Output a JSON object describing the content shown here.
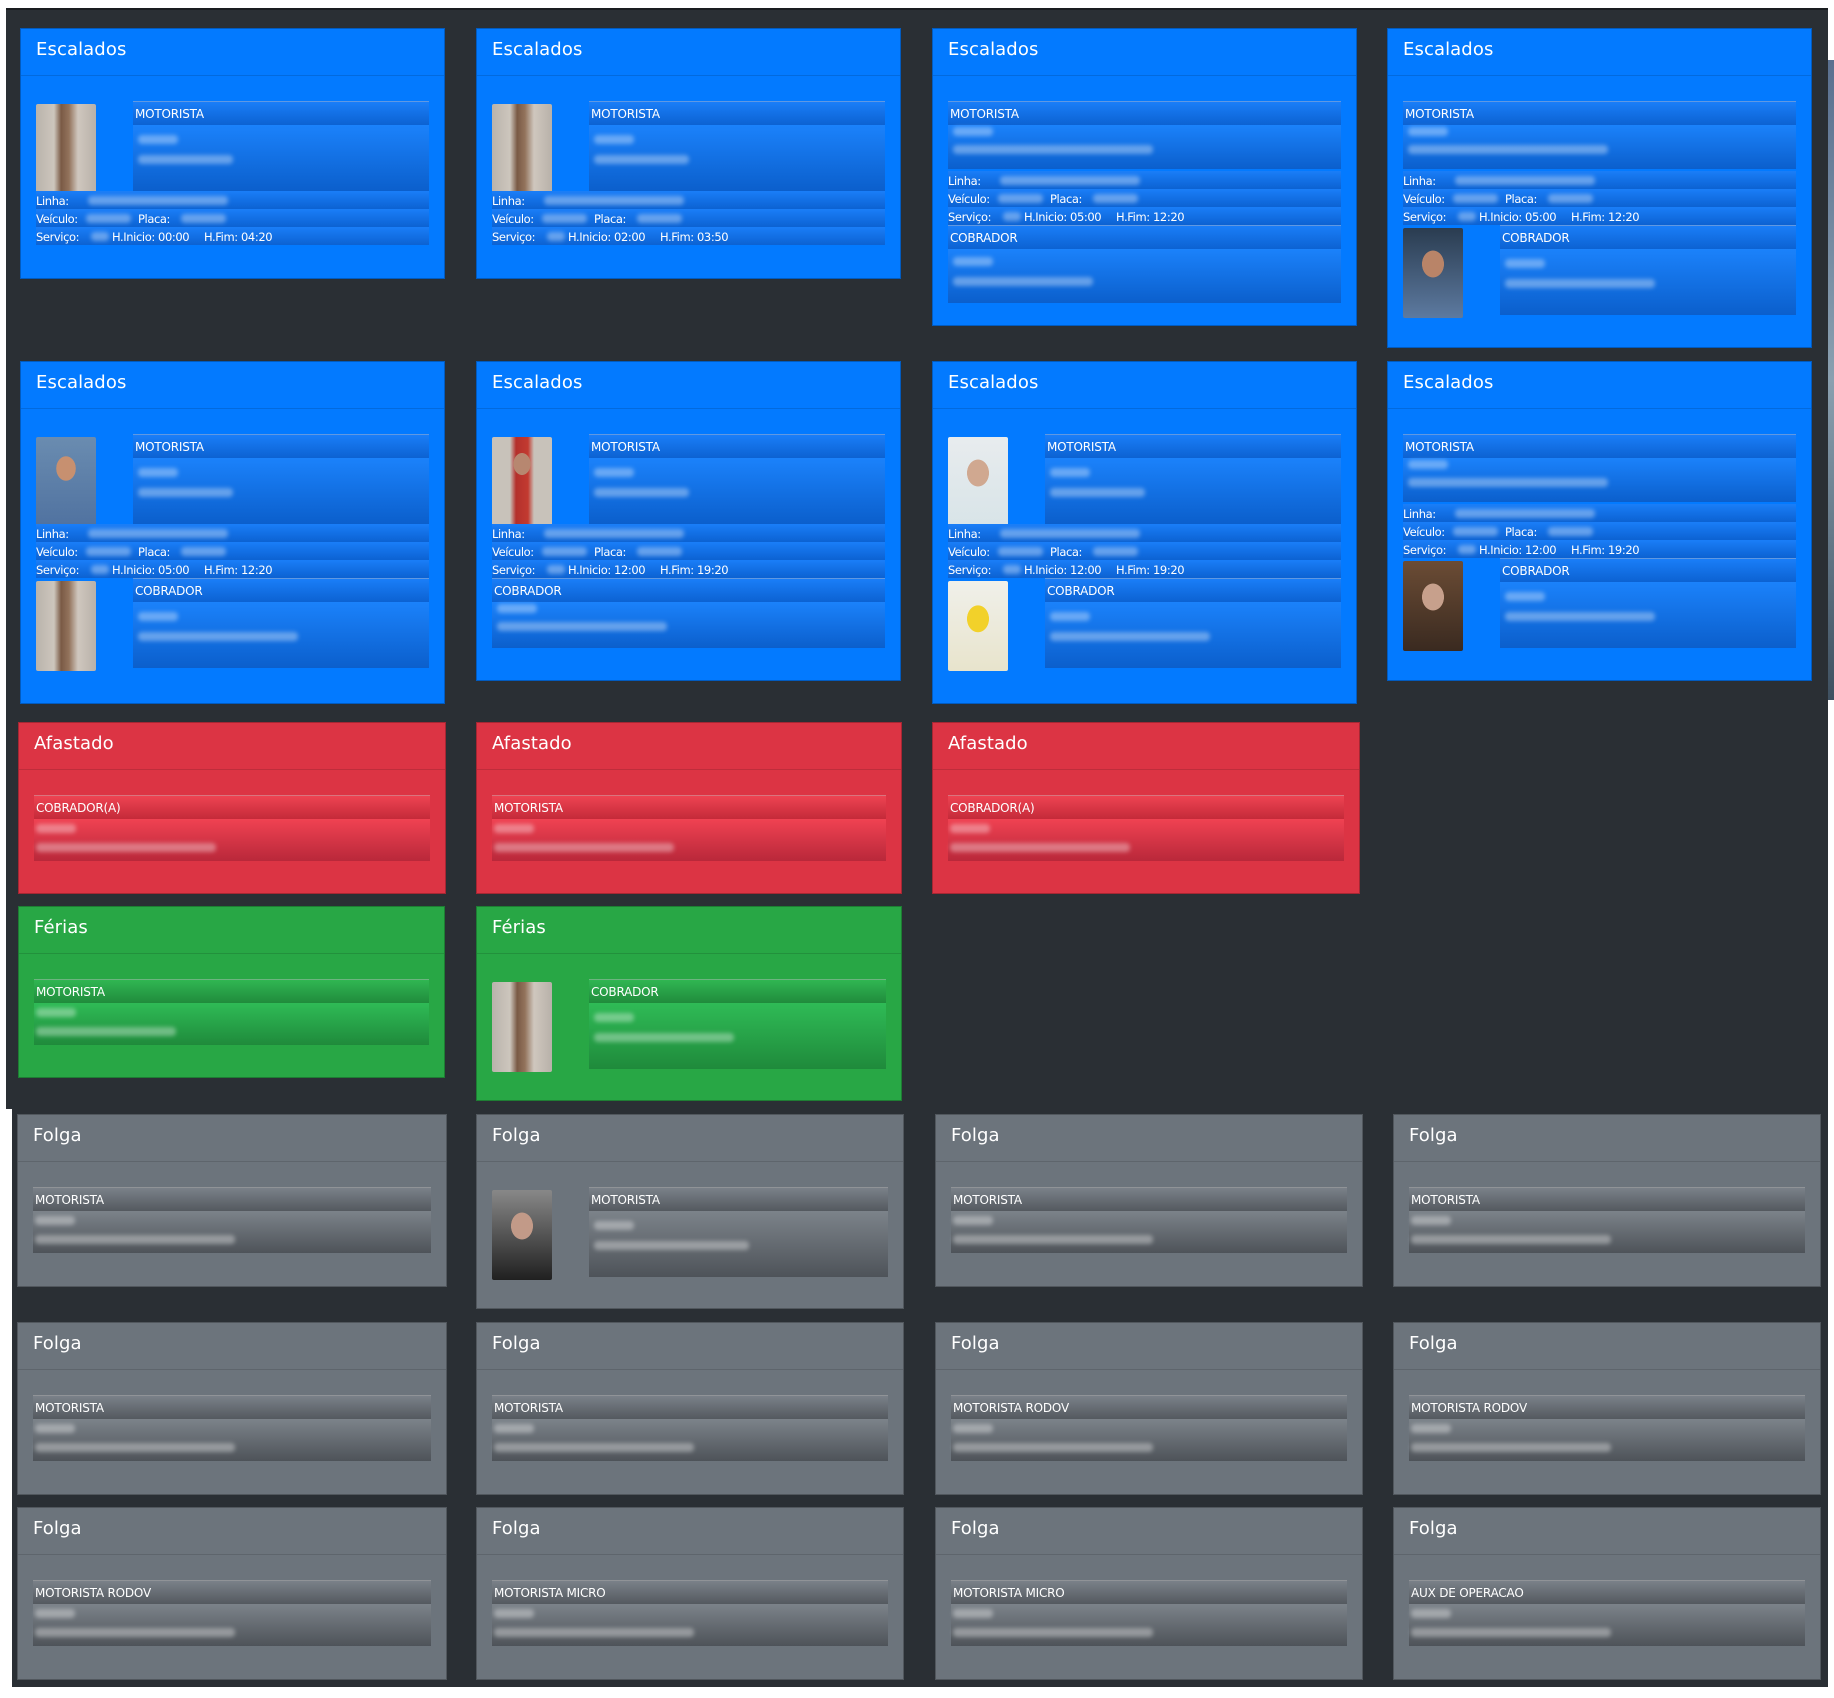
{
  "labels": {
    "motorista": "MOTORISTA",
    "cobrador": "COBRADOR",
    "cobrador_a": "COBRADOR(A)",
    "motorista_rodov": "MOTORISTA RODOV",
    "motorista_micro": "MOTORISTA MICRO",
    "aux_operacao": "AUX DE OPERACAO",
    "linha": "Linha:",
    "veiculo": "Veículo:",
    "placa": "Placa:",
    "servico": "Serviço:"
  },
  "statuses": {
    "escalados": "Escalados",
    "afastado": "Afastado",
    "ferias": "Férias",
    "folga": "Folga"
  },
  "escalados_cards": [
    {
      "status": "Escalados",
      "role": "MOTORISTA",
      "inicio": "H.Inicio: 00:00",
      "fim": "H.Fim: 04:20"
    },
    {
      "status": "Escalados",
      "role": "MOTORISTA",
      "inicio": "H.Inicio: 02:00",
      "fim": "H.Fim: 03:50"
    },
    {
      "status": "Escalados",
      "role": "MOTORISTA",
      "inicio": "H.Inicio: 05:00",
      "fim": "H.Fim: 12:20",
      "second_role": "COBRADOR"
    },
    {
      "status": "Escalados",
      "role": "MOTORISTA",
      "inicio": "H.Inicio: 05:00",
      "fim": "H.Fim: 12:20",
      "second_role": "COBRADOR"
    },
    {
      "status": "Escalados",
      "role": "MOTORISTA",
      "inicio": "H.Inicio: 05:00",
      "fim": "H.Fim: 12:20",
      "second_role": "COBRADOR"
    },
    {
      "status": "Escalados",
      "role": "MOTORISTA",
      "inicio": "H.Inicio: 12:00",
      "fim": "H.Fim: 19:20",
      "second_role": "COBRADOR"
    },
    {
      "status": "Escalados",
      "role": "MOTORISTA",
      "inicio": "H.Inicio: 12:00",
      "fim": "H.Fim: 19:20",
      "second_role": "COBRADOR"
    },
    {
      "status": "Escalados",
      "role": "MOTORISTA",
      "inicio": "H.Inicio: 12:00",
      "fim": "H.Fim: 19:20",
      "second_role": "COBRADOR"
    }
  ],
  "afastado_cards": [
    {
      "status": "Afastado",
      "role": "COBRADOR(A)"
    },
    {
      "status": "Afastado",
      "role": "MOTORISTA"
    },
    {
      "status": "Afastado",
      "role": "COBRADOR(A)"
    }
  ],
  "ferias_cards": [
    {
      "status": "Férias",
      "role": "MOTORISTA"
    },
    {
      "status": "Férias",
      "role": "COBRADOR"
    }
  ],
  "folga_cards": [
    {
      "status": "Folga",
      "role": "MOTORISTA"
    },
    {
      "status": "Folga",
      "role": "MOTORISTA"
    },
    {
      "status": "Folga",
      "role": "MOTORISTA"
    },
    {
      "status": "Folga",
      "role": "MOTORISTA"
    },
    {
      "status": "Folga",
      "role": "MOTORISTA"
    },
    {
      "status": "Folga",
      "role": "MOTORISTA"
    },
    {
      "status": "Folga",
      "role": "MOTORISTA RODOV"
    },
    {
      "status": "Folga",
      "role": "MOTORISTA RODOV"
    },
    {
      "status": "Folga",
      "role": "MOTORISTA RODOV"
    },
    {
      "status": "Folga",
      "role": "MOTORISTA MICRO"
    },
    {
      "status": "Folga",
      "role": "MOTORISTA MICRO"
    },
    {
      "status": "Folga",
      "role": "AUX DE OPERACAO"
    }
  ],
  "colors": {
    "background": "#2a2f34",
    "escalados": "#037aff",
    "afastado": "#dc3444",
    "ferias": "#28a745",
    "folga": "#6c747c"
  }
}
